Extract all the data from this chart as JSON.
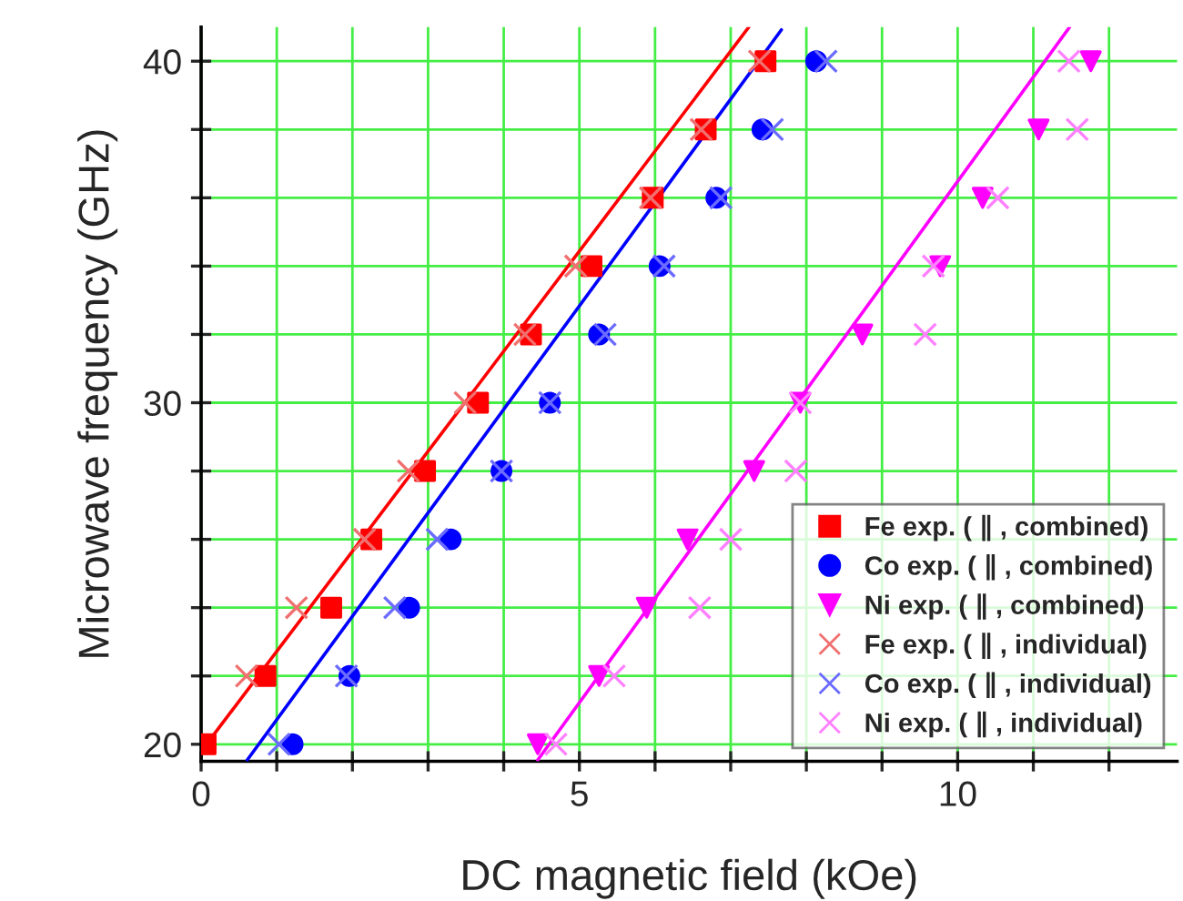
{
  "chart_data": {
    "type": "scatter",
    "xlabel": "DC magnetic field (kOe)",
    "ylabel": "Microwave frequency (GHz)",
    "xlim": [
      0,
      12.9
    ],
    "ylim": [
      19.5,
      41
    ],
    "xticks": [
      0,
      {
        "value": 1,
        "label": null
      },
      {
        "value": 2,
        "label": null
      },
      {
        "value": 3,
        "label": null
      },
      {
        "value": 4,
        "label": null
      },
      5,
      {
        "value": 6,
        "label": null
      },
      {
        "value": 7,
        "label": null
      },
      {
        "value": 8,
        "label": null
      },
      {
        "value": 9,
        "label": null
      },
      10,
      {
        "value": 11,
        "label": null
      },
      {
        "value": 12,
        "label": null
      }
    ],
    "yticks": [
      20,
      {
        "value": 22,
        "label": null
      },
      {
        "value": 24,
        "label": null
      },
      {
        "value": 26,
        "label": null
      },
      {
        "value": 28,
        "label": null
      },
      30,
      {
        "value": 32,
        "label": null
      },
      {
        "value": 34,
        "label": null
      },
      {
        "value": 36,
        "label": null
      },
      {
        "value": 38,
        "label": null
      },
      40
    ],
    "grid": true,
    "legend": "bottom right",
    "series": [
      {
        "name": "Fe exp. ( ∥ , combined)",
        "color": "#ff0000",
        "marker": "square",
        "x": [
          0.06,
          0.85,
          1.72,
          2.25,
          2.96,
          3.66,
          4.36,
          5.16,
          5.97,
          6.67,
          7.46
        ],
        "values": [
          20,
          22,
          24,
          26,
          28,
          30,
          32,
          34,
          36,
          38,
          40
        ]
      },
      {
        "name": "Co exp. ( ∥ , combined)",
        "color": "#0000ff",
        "marker": "circle",
        "x": [
          1.21,
          1.96,
          2.75,
          3.3,
          3.97,
          4.61,
          5.26,
          6.06,
          6.81,
          7.42,
          8.13
        ],
        "values": [
          20,
          22,
          24,
          26,
          28,
          30,
          32,
          34,
          36,
          38,
          40
        ]
      },
      {
        "name": "Ni exp. ( ∥ , combined)",
        "color": "#ff00ff",
        "marker": "triangle",
        "x": [
          4.45,
          5.26,
          5.89,
          6.43,
          7.31,
          7.92,
          8.74,
          9.77,
          10.33,
          11.07,
          11.76
        ],
        "values": [
          20,
          22,
          24,
          26,
          28,
          30,
          32,
          34,
          36,
          38,
          40
        ]
      },
      {
        "name": "Fe exp. ( ∥ , individual)",
        "color": "#f07070",
        "marker": "cross",
        "x": [
          0.6,
          1.26,
          2.16,
          2.74,
          3.49,
          4.28,
          4.95,
          5.94,
          6.61,
          7.38
        ],
        "values": [
          22,
          24,
          26,
          28,
          30,
          32,
          34,
          36,
          38,
          40
        ]
      },
      {
        "name": "Co exp. ( ∥ , individual)",
        "color": "#6b6bff",
        "marker": "cross",
        "x": [
          1.03,
          1.92,
          2.56,
          3.12,
          3.97,
          4.61,
          5.34,
          6.12,
          6.87,
          7.55,
          8.26
        ],
        "values": [
          20,
          22,
          24,
          26,
          28,
          30,
          32,
          34,
          36,
          38,
          40
        ]
      },
      {
        "name": "Ni exp. ( ∥ , individual)",
        "color": "#ff80ff",
        "marker": "cross",
        "x": [
          4.69,
          5.46,
          6.59,
          7.0,
          7.86,
          7.92,
          9.57,
          9.68,
          10.53,
          11.58,
          11.47
        ],
        "values": [
          20,
          22,
          24,
          26,
          28,
          30,
          32,
          34,
          36,
          38,
          40
        ]
      },
      {
        "type": "line",
        "color": "#ff0000",
        "x": [
          0.02,
          7.24
        ],
        "values": [
          19.85,
          41.0
        ]
      },
      {
        "type": "line",
        "color": "#0000ff",
        "x": [
          0.61,
          7.67
        ],
        "values": [
          19.54,
          40.92
        ]
      },
      {
        "type": "line",
        "color": "#ff00ff",
        "x": [
          4.45,
          11.48
        ],
        "values": [
          19.54,
          41.0
        ]
      }
    ]
  }
}
